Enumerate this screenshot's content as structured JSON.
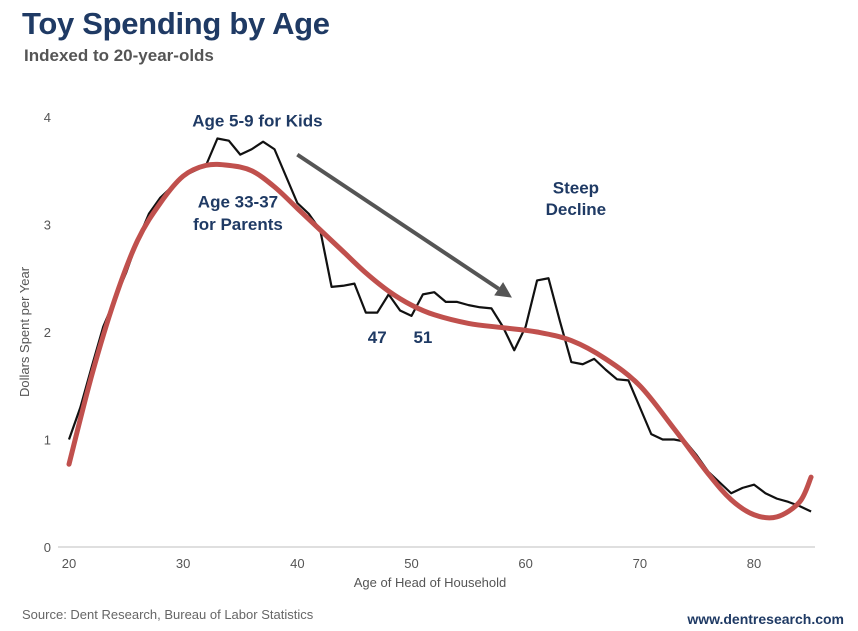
{
  "header": {
    "title": "Toy Spending by Age",
    "subtitle": "Indexed to 20-year-olds"
  },
  "footer": {
    "source": "Source: Dent Research, Bureau of Labor Statistics",
    "website": "www.dentresearch.com"
  },
  "chart_data": {
    "type": "line",
    "title": "Toy Spending by Age",
    "subtitle": "Indexed to 20-year-olds",
    "xlabel": "Age of Head of Household",
    "ylabel": "Dollars  Spent per Year",
    "xlim": [
      20,
      86
    ],
    "ylim": [
      0,
      4
    ],
    "xticks": [
      20,
      30,
      40,
      50,
      60,
      70,
      80
    ],
    "yticks": [
      0,
      1,
      2,
      3,
      4
    ],
    "grid": false,
    "legend": "none",
    "series": [
      {
        "color": "#111111",
        "x": [
          20,
          21,
          22,
          23,
          24,
          25,
          26,
          27,
          28,
          29,
          30,
          31,
          32,
          33,
          34,
          35,
          36,
          37,
          38,
          39,
          40,
          41,
          42,
          43,
          44,
          45,
          46,
          47,
          48,
          49,
          50,
          51,
          52,
          53,
          54,
          55,
          56,
          57,
          58,
          59,
          60,
          61,
          62,
          63,
          64,
          65,
          66,
          67,
          68,
          69,
          70,
          71,
          72,
          73,
          74,
          75,
          76,
          77,
          78,
          79,
          80,
          81,
          82,
          83,
          84,
          85
        ],
        "y": [
          1.0,
          1.3,
          1.68,
          2.05,
          2.3,
          2.55,
          2.85,
          3.1,
          3.25,
          3.35,
          3.45,
          3.5,
          3.55,
          3.8,
          3.78,
          3.65,
          3.7,
          3.77,
          3.7,
          3.45,
          3.2,
          3.1,
          2.95,
          2.42,
          2.43,
          2.45,
          2.18,
          2.18,
          2.35,
          2.2,
          2.15,
          2.35,
          2.37,
          2.28,
          2.28,
          2.25,
          2.23,
          2.22,
          2.05,
          1.83,
          2.05,
          2.48,
          2.5,
          2.1,
          1.72,
          1.7,
          1.75,
          1.65,
          1.56,
          1.55,
          1.3,
          1.05,
          1.0,
          1.0,
          0.98,
          0.85,
          0.7,
          0.6,
          0.5,
          0.55,
          0.58,
          0.5,
          0.45,
          0.42,
          0.38,
          0.33
        ]
      },
      {
        "color": "#c0504d",
        "smooth": true,
        "x": [
          20,
          22,
          24,
          26,
          28,
          30,
          32,
          34,
          36,
          38,
          40,
          42,
          44,
          46,
          48,
          50,
          52,
          55,
          58,
          61,
          64,
          67,
          70,
          73,
          76,
          78,
          80,
          82,
          84,
          85
        ],
        "y": [
          0.77,
          1.6,
          2.3,
          2.85,
          3.2,
          3.45,
          3.55,
          3.55,
          3.5,
          3.35,
          3.15,
          2.95,
          2.75,
          2.55,
          2.38,
          2.25,
          2.16,
          2.08,
          2.04,
          2.0,
          1.92,
          1.75,
          1.5,
          1.1,
          0.68,
          0.44,
          0.3,
          0.28,
          0.42,
          0.65
        ]
      }
    ],
    "annotations": [
      {
        "text": "Age 5-9 for Kids",
        "x": 36.5,
        "y": 3.91
      },
      {
        "text": "Age 33-37",
        "x": 34.8,
        "y": 3.16
      },
      {
        "text": "for Parents",
        "x": 34.8,
        "y": 2.95
      },
      {
        "text": "Steep",
        "x": 64.4,
        "y": 3.29
      },
      {
        "text": "Decline",
        "x": 64.4,
        "y": 3.09
      },
      {
        "text": "47",
        "x": 47.0,
        "y": 1.9
      },
      {
        "text": "51",
        "x": 51.0,
        "y": 1.9
      }
    ],
    "arrow": {
      "from": [
        40,
        3.65
      ],
      "to": [
        58.8,
        2.32
      ],
      "color": "#555555"
    }
  }
}
